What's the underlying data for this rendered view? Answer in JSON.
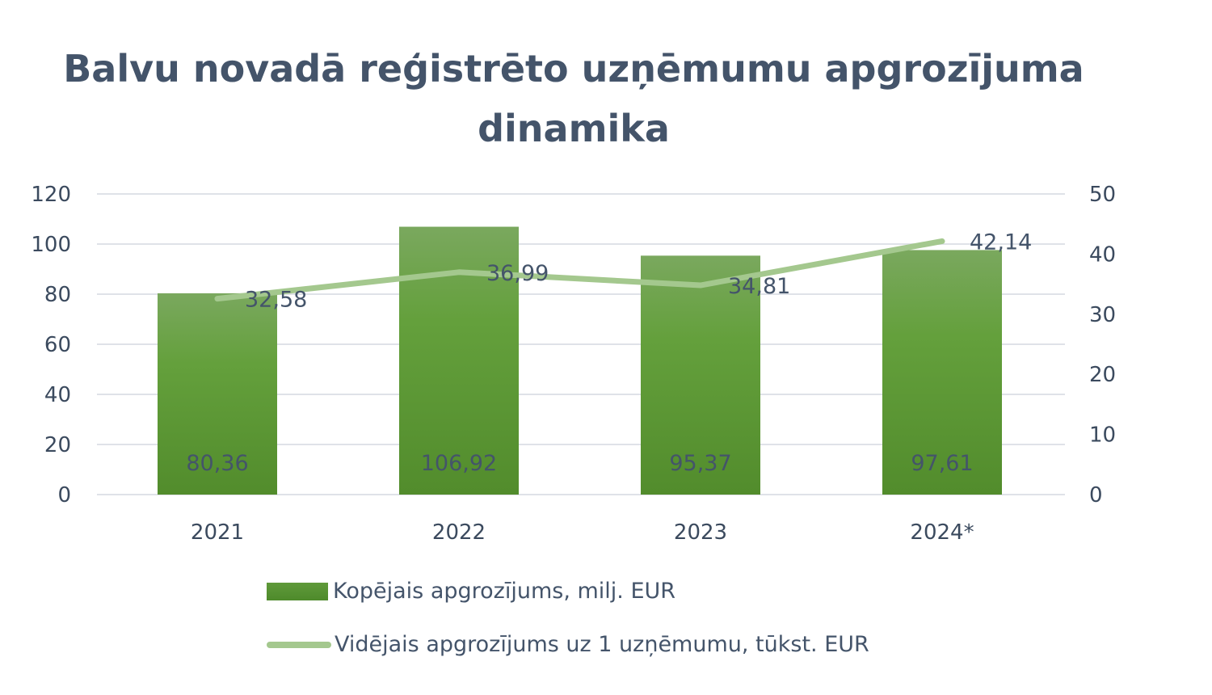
{
  "chart_data": {
    "type": "bar+line",
    "title": "Balvu novadā reģistrēto uzņēmumu apgrozījuma dinamika",
    "categories": [
      "2021",
      "2022",
      "2023",
      "2024*"
    ],
    "series": [
      {
        "name": "Kopējais apgrozījums, milj. EUR",
        "type": "bar",
        "axis": "left",
        "values": [
          80.36,
          106.92,
          95.37,
          97.61
        ],
        "labels": [
          "80,36",
          "106,92",
          "95,37",
          "97,61"
        ],
        "color": "#5a9632"
      },
      {
        "name": "Vidējais apgrozījums uz 1 uzņēmumu, tūkst. EUR",
        "type": "line",
        "axis": "right",
        "values": [
          32.58,
          36.99,
          34.81,
          42.14
        ],
        "labels": [
          "32,58",
          "36,99",
          "34,81",
          "42,14"
        ],
        "color": "#a4c88e"
      }
    ],
    "y_left": {
      "range": [
        0,
        120
      ],
      "ticks": [
        "0",
        "20",
        "40",
        "60",
        "80",
        "100",
        "120"
      ]
    },
    "y_right": {
      "range": [
        0,
        50
      ],
      "ticks": [
        "0",
        "10",
        "20",
        "30",
        "40",
        "50"
      ]
    },
    "grid": true,
    "legend": "bottom"
  }
}
